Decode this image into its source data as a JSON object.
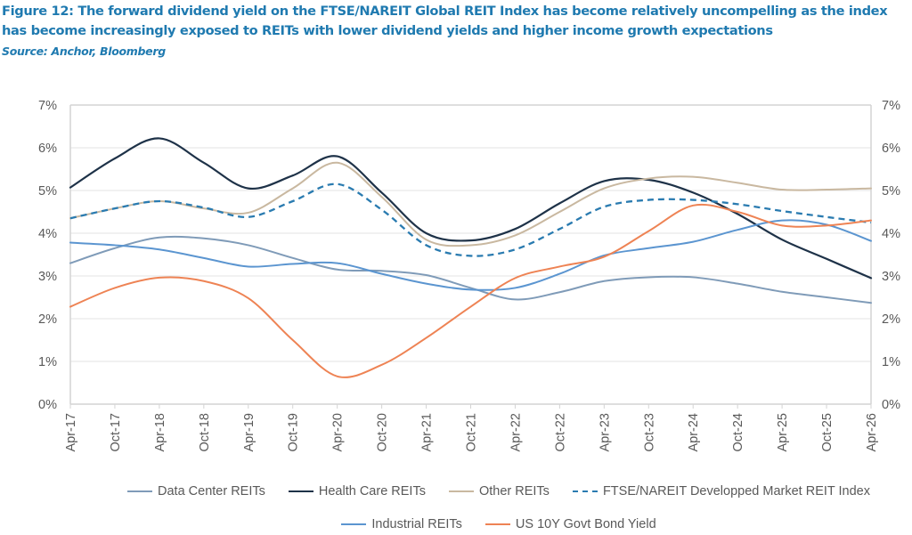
{
  "figure": {
    "title": "Figure 12: The forward dividend yield on the FTSE/NAREIT Global REIT Index has become relatively uncompelling as the index has become increasingly exposed to REITs with lower dividend yields and higher income growth expectations",
    "source": "Source: Anchor, Bloomberg"
  },
  "chart_data": {
    "type": "line",
    "title": "",
    "xlabel": "",
    "ylabel": "",
    "ylim": [
      0,
      7
    ],
    "y_ticks": [
      "0%",
      "1%",
      "2%",
      "3%",
      "4%",
      "5%",
      "6%",
      "7%"
    ],
    "y_ticks_right": [
      "0%",
      "1%",
      "2%",
      "3%",
      "4%",
      "5%",
      "6%",
      "7%"
    ],
    "grid": "horizontal",
    "legend_position": "bottom",
    "x": [
      "Apr-17",
      "Oct-17",
      "Apr-18",
      "Oct-18",
      "Apr-19",
      "Oct-19",
      "Apr-20",
      "Oct-20",
      "Apr-21",
      "Oct-21",
      "Apr-22",
      "Oct-22",
      "Apr-23",
      "Oct-23",
      "Apr-24",
      "Oct-24",
      "Apr-25",
      "Oct-25",
      "Apr-26"
    ],
    "series": [
      {
        "name": "Data Center REITs",
        "color": "#7f9bb8",
        "dash": false,
        "values": [
          3.3,
          3.65,
          3.9,
          3.88,
          3.72,
          3.42,
          3.15,
          3.12,
          3.02,
          2.72,
          2.45,
          2.62,
          2.88,
          2.97,
          2.97,
          2.82,
          2.63,
          2.5,
          2.37
        ]
      },
      {
        "name": "Health Care REITs",
        "color": "#1e3248",
        "dash": false,
        "values": [
          5.07,
          5.75,
          6.22,
          5.65,
          5.05,
          5.35,
          5.8,
          4.95,
          4.0,
          3.83,
          4.1,
          4.7,
          5.22,
          5.25,
          4.95,
          4.45,
          3.85,
          3.4,
          2.95
        ]
      },
      {
        "name": "Other REITs",
        "color": "#c9b8a0",
        "dash": false,
        "values": [
          4.35,
          4.58,
          4.75,
          4.58,
          4.48,
          5.05,
          5.65,
          4.85,
          3.85,
          3.72,
          3.95,
          4.5,
          5.05,
          5.28,
          5.32,
          5.18,
          5.02,
          5.02,
          5.05
        ]
      },
      {
        "name": "FTSE/NAREIT Developped Market REIT Index",
        "color": "#2a7bb0",
        "dash": true,
        "values": [
          4.35,
          4.58,
          4.75,
          4.6,
          4.38,
          4.75,
          5.15,
          4.55,
          3.72,
          3.47,
          3.62,
          4.1,
          4.62,
          4.78,
          4.78,
          4.68,
          4.52,
          4.38,
          4.25
        ]
      },
      {
        "name": "Industrial REITs",
        "color": "#5b95d0",
        "dash": false,
        "values": [
          3.78,
          3.72,
          3.62,
          3.42,
          3.22,
          3.28,
          3.3,
          3.05,
          2.82,
          2.68,
          2.72,
          3.05,
          3.48,
          3.65,
          3.8,
          4.08,
          4.3,
          4.2,
          3.82
        ]
      },
      {
        "name": "US 10Y Govt Bond Yield",
        "color": "#ee8354",
        "dash": false,
        "values": [
          2.28,
          2.72,
          2.96,
          2.88,
          2.48,
          1.5,
          0.65,
          0.92,
          1.55,
          2.28,
          2.95,
          3.22,
          3.45,
          4.05,
          4.65,
          4.5,
          4.18,
          4.18,
          4.3
        ]
      }
    ],
    "legend": {
      "row1": [
        "Data Center REITs",
        "Health Care REITs",
        "Other REITs",
        "FTSE/NAREIT Developped Market REIT Index"
      ],
      "row2": [
        "Industrial REITs",
        "US 10Y Govt Bond Yield"
      ]
    }
  }
}
